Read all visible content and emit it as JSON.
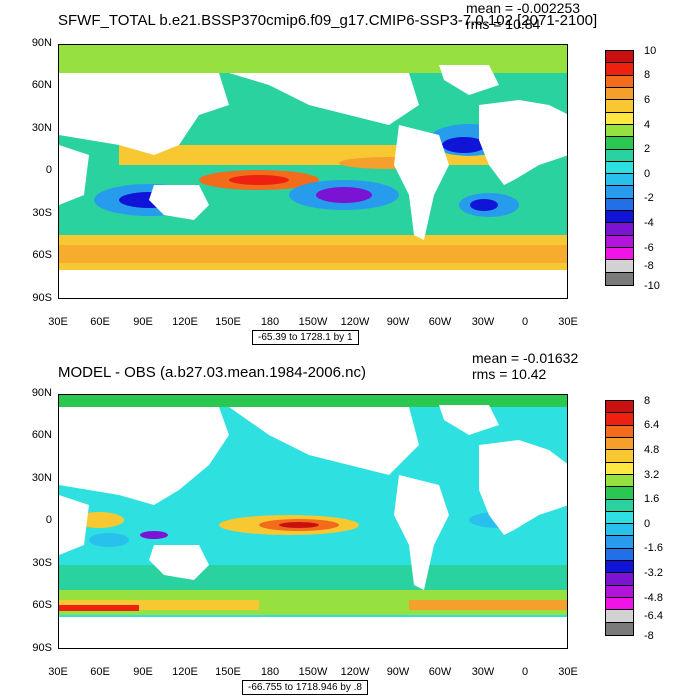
{
  "panels": [
    {
      "title": "SFWF_TOTAL b.e21.BSSP370cmip6.f09_g17.CMIP6-SSP3-7.0.102 [2071-2100]",
      "mean_text": "mean = -0.002253",
      "rms_text": "rms = 10.84",
      "range_text": "-65.39 to 1728.1 by 1",
      "colorbar_labels": [
        "10",
        "8",
        "6",
        "4",
        "2",
        "0",
        "-2",
        "-4",
        "-6",
        "-8",
        "-10"
      ],
      "colorbar_colors": [
        "#c81010",
        "#ee2010",
        "#f26c1c",
        "#f5a02c",
        "#f8c832",
        "#ffe640",
        "#96e040",
        "#2ac850",
        "#2ad2a0",
        "#2ee0e0",
        "#28c0ec",
        "#289cec",
        "#2270e8",
        "#1014d6",
        "#7a14d2",
        "#b214dc",
        "#f014e6",
        "#d2d2d2",
        "#7a7a7a"
      ]
    },
    {
      "title": "MODEL - OBS (a.b27.03.mean.1984-2006.nc)",
      "mean_text": "mean = -0.01632",
      "rms_text": "rms = 10.42",
      "range_text": "-66.755 to 1718.946 by .8",
      "colorbar_labels": [
        "8",
        "6.4",
        "4.8",
        "3.2",
        "1.6",
        "0",
        "-1.6",
        "-3.2",
        "-4.8",
        "-6.4",
        "-8"
      ],
      "colorbar_colors": [
        "#c81010",
        "#ee2010",
        "#f26c1c",
        "#f5a02c",
        "#f8c832",
        "#ffe640",
        "#96e040",
        "#2ac850",
        "#2ad2a0",
        "#2ee0e0",
        "#28c0ec",
        "#289cec",
        "#2270e8",
        "#1014d6",
        "#7a14d2",
        "#b214dc",
        "#f014e6",
        "#d2d2d2",
        "#7a7a7a"
      ]
    }
  ],
  "lat_ticks": [
    "90N",
    "60N",
    "30N",
    "0",
    "30S",
    "60S",
    "90S"
  ],
  "lon_ticks": [
    "30E",
    "60E",
    "90E",
    "120E",
    "150E",
    "180",
    "150W",
    "120W",
    "90W",
    "60W",
    "30W",
    "0",
    "30E"
  ],
  "palette": {
    "land": "#ffffff",
    "ocean_base_top": "#2ee0e0",
    "ocean_base_bot": "#2ad2a0"
  }
}
